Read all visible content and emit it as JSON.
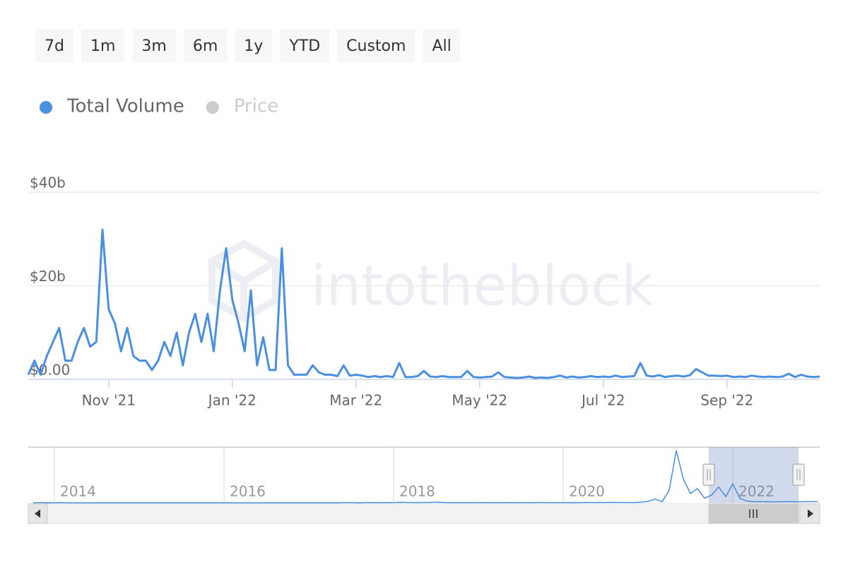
{
  "range_buttons": [
    "7d",
    "1m",
    "3m",
    "6m",
    "1y",
    "YTD",
    "Custom",
    "All"
  ],
  "chart_data": [
    {
      "type": "line",
      "watermark": "intotheblock",
      "categories": [
        null,
        null,
        null,
        null,
        null,
        null,
        null,
        null,
        null,
        null,
        null,
        null,
        null,
        "Nov '21",
        null,
        null,
        null,
        null,
        null,
        null,
        null,
        null,
        null,
        null,
        null,
        null,
        null,
        null,
        null,
        null,
        null,
        null,
        null,
        "Jan '22",
        null,
        null,
        null,
        null,
        null,
        null,
        null,
        null,
        null,
        null,
        null,
        null,
        null,
        null,
        null,
        null,
        null,
        null,
        null,
        "Mar '22",
        null,
        null,
        null,
        null,
        null,
        null,
        null,
        null,
        null,
        null,
        null,
        null,
        null,
        null,
        null,
        null,
        null,
        null,
        null,
        "May '22",
        null,
        null,
        null,
        null,
        null,
        null,
        null,
        null,
        null,
        null,
        null,
        null,
        null,
        null,
        null,
        null,
        null,
        null,
        null,
        "Jul '22",
        null,
        null,
        null,
        null,
        null,
        null,
        null,
        null,
        null,
        null,
        null,
        null,
        null,
        null,
        null,
        null,
        null,
        null,
        null,
        "Sep '22",
        null,
        null,
        null,
        null,
        null,
        null,
        null,
        null,
        null,
        null,
        null,
        null,
        null,
        null,
        null
      ],
      "series": [
        {
          "name": "Total Volume",
          "color": "#4a8fe0",
          "values": [
            1,
            4,
            1,
            5,
            8,
            11,
            4,
            4,
            8,
            11,
            7,
            8,
            32,
            15,
            12,
            6,
            11,
            5,
            4,
            4,
            2,
            4,
            8,
            5,
            10,
            3,
            10,
            14,
            8,
            14,
            6,
            19,
            28,
            17,
            12,
            6,
            19,
            3,
            9,
            2,
            2,
            28,
            3,
            1,
            1,
            1,
            3,
            1.5,
            1,
            1,
            0.7,
            3,
            0.8,
            1,
            0.8,
            0.5,
            0.7,
            0.5,
            0.7,
            0.5,
            3.5,
            0.5,
            0.5,
            0.7,
            1.8,
            0.6,
            0.5,
            0.7,
            0.5,
            0.5,
            0.5,
            1.8,
            0.5,
            0.4,
            0.5,
            0.6,
            1.5,
            0.5,
            0.4,
            0.3,
            0.4,
            0.6,
            0.3,
            0.4,
            0.3,
            0.5,
            0.8,
            0.4,
            0.6,
            0.4,
            0.5,
            0.7,
            0.5,
            0.6,
            0.5,
            0.8,
            0.5,
            0.6,
            0.7,
            3.5,
            0.8,
            0.6,
            0.9,
            0.5,
            0.7,
            0.8,
            0.6,
            0.9,
            2.2,
            1.5,
            0.8,
            0.8,
            0.7,
            0.8,
            0.5,
            0.6,
            0.5,
            0.8,
            0.6,
            0.5,
            0.6,
            0.5,
            0.6,
            1.2,
            0.5,
            1.0,
            0.6,
            0.5,
            0.6
          ]
        },
        {
          "name": "Price",
          "color": "#cccccc",
          "visible": false
        }
      ],
      "ylim": [
        0,
        40
      ],
      "yticks": [
        {
          "value": 0,
          "label": "$0.00"
        },
        {
          "value": 20,
          "label": "$20b"
        },
        {
          "value": 40,
          "label": "$40b"
        }
      ],
      "grid": true
    },
    {
      "type": "navigator",
      "categories": [
        null,
        null,
        null,
        "2014",
        null,
        null,
        null,
        null,
        null,
        null,
        null,
        null,
        null,
        null,
        null,
        null,
        null,
        null,
        null,
        null,
        null,
        null,
        null,
        null,
        null,
        null,
        null,
        "2016",
        null,
        null,
        null,
        null,
        null,
        null,
        null,
        null,
        null,
        null,
        null,
        null,
        null,
        null,
        null,
        null,
        null,
        null,
        null,
        null,
        null,
        null,
        null,
        "2018",
        null,
        null,
        null,
        null,
        null,
        null,
        null,
        null,
        null,
        null,
        null,
        null,
        null,
        null,
        null,
        null,
        null,
        null,
        null,
        null,
        null,
        null,
        null,
        "2020",
        null,
        null,
        null,
        null,
        null,
        null,
        null,
        null,
        null,
        null,
        null,
        null,
        null,
        null,
        null,
        null,
        null,
        null,
        null,
        null,
        null,
        null,
        null,
        "2022",
        null,
        null,
        null,
        null,
        null,
        null,
        null,
        null,
        null,
        null,
        null,
        null
      ],
      "values": [
        0.1,
        0.3,
        0.1,
        0.1,
        0.2,
        0.1,
        0.1,
        0.1,
        0.1,
        0.1,
        0.1,
        0.1,
        0.1,
        0.1,
        0.1,
        0.1,
        0.1,
        0.1,
        0.1,
        0.1,
        0.1,
        0.1,
        0.1,
        0.1,
        0.1,
        0.1,
        0.1,
        0.1,
        0.1,
        0.1,
        0.1,
        0.1,
        0.1,
        0.1,
        0.1,
        0.1,
        0.1,
        0.1,
        0.1,
        0.1,
        0.1,
        0.1,
        0.1,
        0.1,
        0.2,
        0.2,
        0.1,
        0.2,
        0.3,
        0.2,
        0.3,
        0.2,
        0.4,
        0.3,
        0.2,
        0.3,
        0.3,
        0.5,
        0.3,
        0.2,
        0.3,
        0.2,
        0.3,
        0.2,
        0.3,
        0.2,
        0.2,
        0.3,
        0.2,
        0.2,
        0.2,
        0.2,
        0.3,
        0.2,
        0.2,
        0.2,
        0.3,
        0.2,
        0.3,
        0.3,
        0.3,
        0.3,
        0.4,
        0.3,
        0.3,
        0.3,
        0.5,
        1,
        2.5,
        0.8,
        8,
        33,
        15,
        6,
        9,
        3,
        5,
        10,
        4,
        12,
        3,
        1.2,
        0.9,
        0.8,
        0.8,
        0.7,
        0.8,
        0.9,
        0.7,
        0.8,
        0.9,
        0.8
      ],
      "color": "#4a8fe0",
      "ylim": [
        0,
        35
      ]
    }
  ]
}
